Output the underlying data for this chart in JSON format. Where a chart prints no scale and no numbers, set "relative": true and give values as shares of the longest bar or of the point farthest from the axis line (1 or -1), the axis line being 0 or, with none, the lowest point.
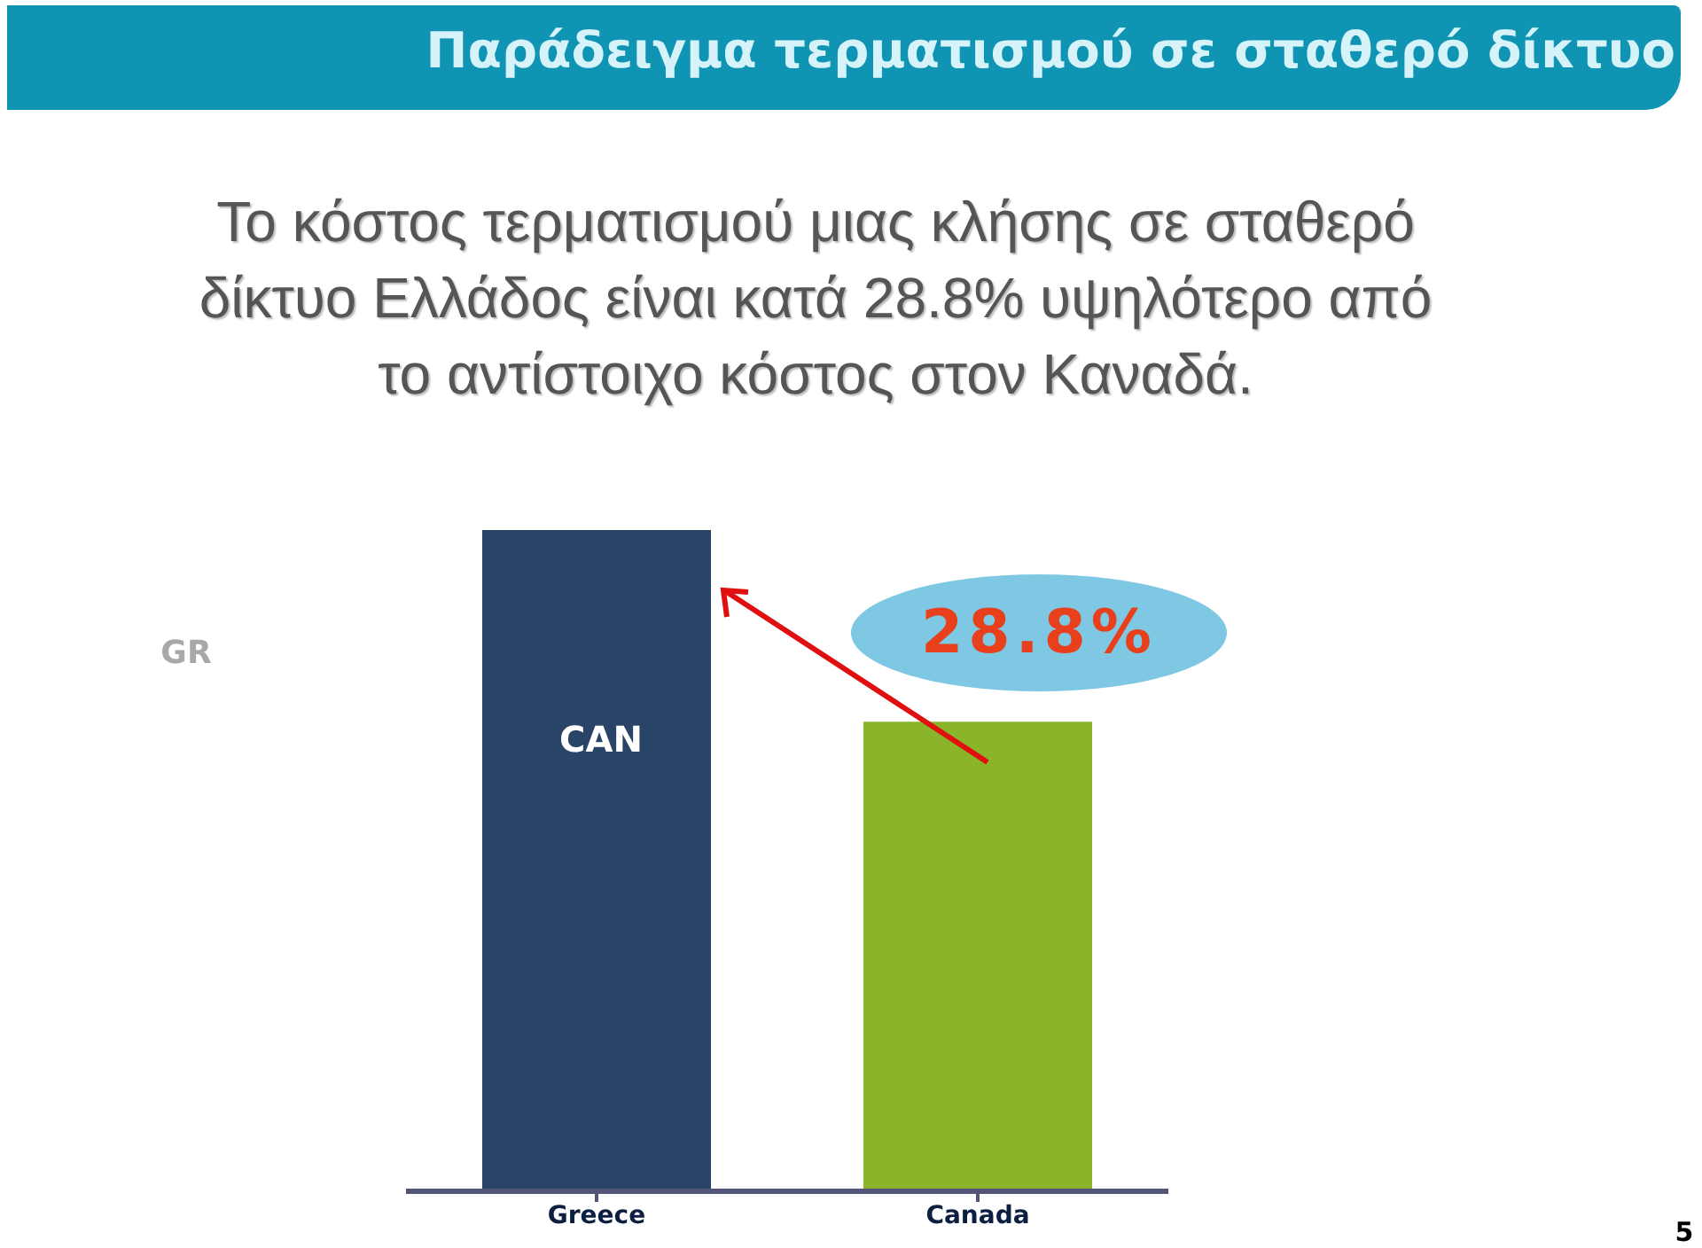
{
  "chart_data": {
    "type": "bar",
    "title": "Παράδειγμα τερματισμού σε σταθερό δίκτυο",
    "subtitle": "Το κόστος τερματισμού μιας κλήσης σε σταθερό δίκτυο Ελλάδος είναι κατά  28.8% υψηλότερο από το αντίστοιχο κόστος στον Καναδά.",
    "relative": true,
    "categories": [
      "Greece",
      "Canada"
    ],
    "values": [
      1,
      0.71
    ],
    "colors": [
      "#2a4468",
      "#8ab52a"
    ],
    "annotations": [
      "GR",
      "CAN",
      "28.8%",
      "5"
    ]
  }
}
